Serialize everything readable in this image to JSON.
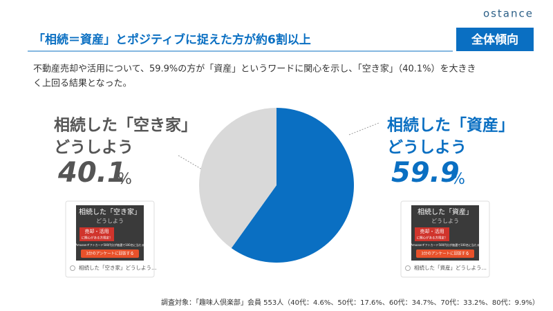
{
  "brand": "ostance",
  "heading": "「相続＝資産」とポジティブに捉えた方が約6割以上",
  "badge": "全体傾向",
  "description": [
    "不動産売却や活用について、59.9%の方が「資産」というワードに関心を示し、「空き家」（40.1%）を大きき",
    "く上回る結果となった。"
  ],
  "chart_data": {
    "type": "pie",
    "unit": "%",
    "categories": [
      [
        "相続した「資産」",
        "どうしよう"
      ],
      [
        "相続した「空き家」",
        "どうしよう"
      ]
    ],
    "values": [
      59.9,
      40.1
    ],
    "colors": [
      "#0a6fc2",
      "#d9d9d9"
    ]
  },
  "cards": [
    {
      "title": [
        "相続した「資産」",
        "どうしよう"
      ],
      "tag": [
        "売却・活用",
        "に関心がある方限定！"
      ],
      "promo": "Amazonギフトカード500円分が抽選で100名に当たる",
      "button": "3分のアンケートに回答する",
      "caption": "相続した「資産」どうしよう…"
    },
    {
      "title": [
        "相続した「空き家」",
        "どうしよう"
      ],
      "tag": [
        "売却・活用",
        "に関心がある方限定！"
      ],
      "promo": "Amazonギフトカード500円分が抽選で100名に当たる",
      "button": "3分のアンケートに回答する",
      "caption": "相続した「空き家」どうしよう…"
    }
  ],
  "footnote": "調査対象：「趣味人倶楽部」会員 553人（40代：4.6%、50代：17.6%、60代：34.7%、70代：33.2%、80代：9.9%）"
}
